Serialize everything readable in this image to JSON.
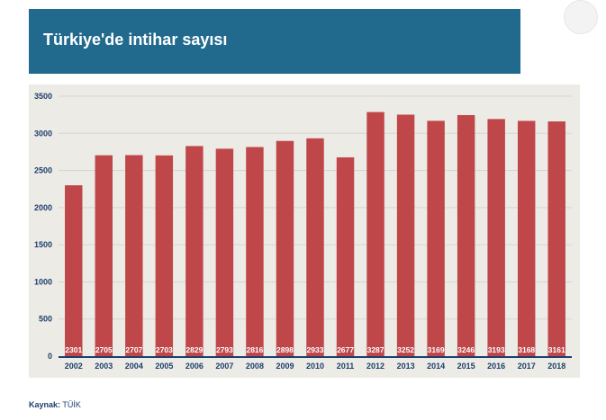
{
  "header": {
    "title": "Türkiye'de intihar sayısı"
  },
  "source": {
    "label": "Kaynak:",
    "value": "TÜİK"
  },
  "colors": {
    "banner": "#216a8e",
    "bar": "#bf474a",
    "panel": "#ecebe5",
    "axis": "#1c3f6e"
  },
  "chart_data": {
    "type": "bar",
    "title": "Türkiye'de intihar sayısı",
    "xlabel": "",
    "ylabel": "",
    "categories": [
      "2002",
      "2003",
      "2004",
      "2005",
      "2006",
      "2007",
      "2008",
      "2009",
      "2010",
      "2011",
      "2012",
      "2013",
      "2014",
      "2015",
      "2016",
      "2017",
      "2018"
    ],
    "values": [
      2301,
      2705,
      2707,
      2703,
      2829,
      2793,
      2816,
      2898,
      2933,
      2677,
      3287,
      3252,
      3169,
      3246,
      3193,
      3168,
      3161
    ],
    "ylim": [
      0,
      3500
    ],
    "yticks": [
      0,
      500,
      1000,
      1500,
      2000,
      2500,
      3000,
      3500
    ],
    "grid": true,
    "legend": "none",
    "data_labels": "inside-bottom"
  }
}
